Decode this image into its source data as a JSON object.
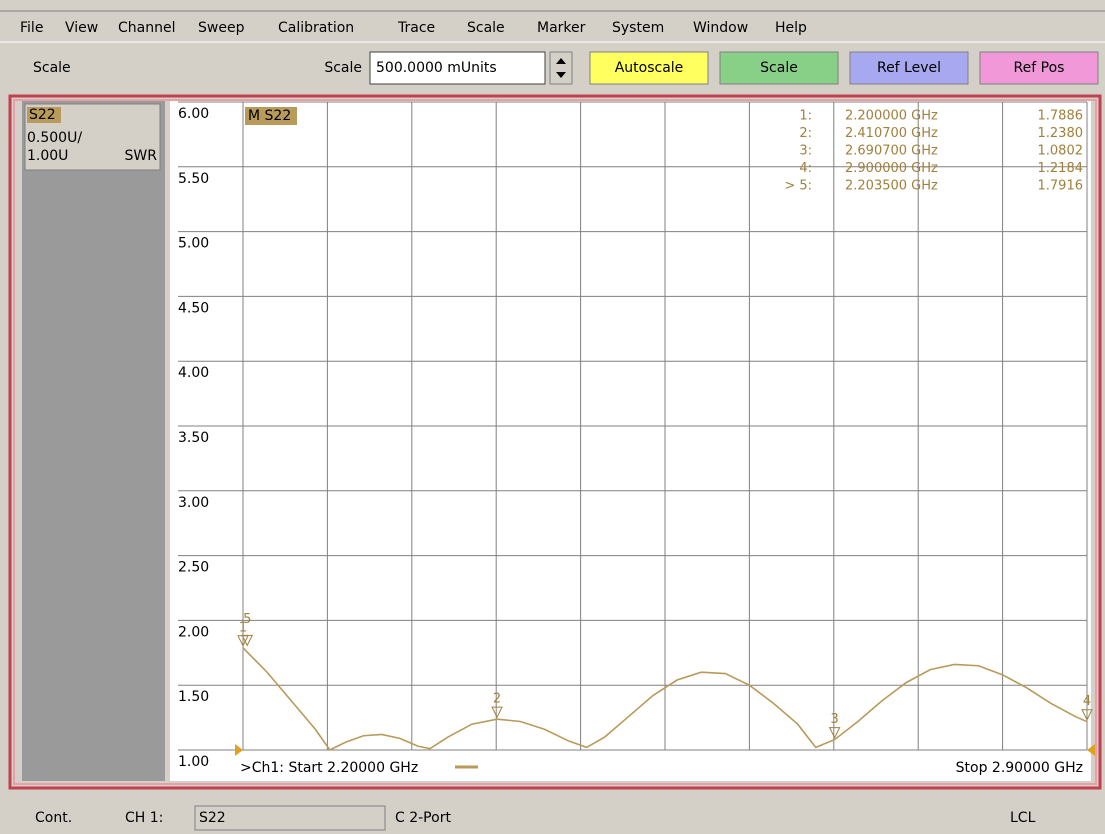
{
  "menu": [
    "File",
    "View",
    "Channel",
    "Sweep",
    "Calibration",
    "Trace",
    "Scale",
    "Marker",
    "System",
    "Window",
    "Help"
  ],
  "toolbar": {
    "section": "Scale",
    "field_label": "Scale",
    "field_value": "500.0000 mUnits",
    "buttons": [
      "Autoscale",
      "Scale",
      "Ref Level",
      "Ref Pos"
    ]
  },
  "trace_panel": {
    "name": "S22",
    "scale": "0.500U/",
    "ref": "1.00U",
    "format": "SWR"
  },
  "status": {
    "mode": "Cont.",
    "channel": "CH 1:",
    "parameter": "S22",
    "cal": "C 2-Port",
    "remote": "LCL"
  },
  "chart_data": {
    "type": "line",
    "trace_label": "M S22",
    "start_label": ">Ch1: Start  2.20000 GHz",
    "stop_label": "Stop  2.90000 GHz",
    "xlim": [
      2.2,
      2.9
    ],
    "ylim": [
      1,
      6
    ],
    "yticks": [
      {
        "value": 1,
        "label": "1.00"
      },
      {
        "value": 1.5,
        "label": "1.50"
      },
      {
        "value": 2,
        "label": "2.00"
      },
      {
        "value": 2.5,
        "label": "2.50"
      },
      {
        "value": 3,
        "label": "3.00"
      },
      {
        "value": 3.5,
        "label": "3.50"
      },
      {
        "value": 4,
        "label": "4.00"
      },
      {
        "value": 4.5,
        "label": "4.50"
      },
      {
        "value": 5,
        "label": "5.00"
      },
      {
        "value": 5.5,
        "label": "5.50"
      },
      {
        "value": 6,
        "label": "6.00"
      }
    ],
    "grid": true,
    "x": [
      2.2,
      2.22,
      2.24,
      2.26,
      2.272,
      2.285,
      2.3,
      2.315,
      2.33,
      2.345,
      2.355,
      2.37,
      2.39,
      2.4107,
      2.43,
      2.45,
      2.47,
      2.485,
      2.5,
      2.52,
      2.54,
      2.56,
      2.58,
      2.6,
      2.62,
      2.64,
      2.66,
      2.675,
      2.6907,
      2.71,
      2.73,
      2.75,
      2.77,
      2.79,
      2.81,
      2.83,
      2.85,
      2.87,
      2.89,
      2.9
    ],
    "series": [
      {
        "name": "S22",
        "color": "#b89a5a",
        "values": [
          1.7886,
          1.6,
          1.38,
          1.16,
          1.0,
          1.06,
          1.11,
          1.12,
          1.09,
          1.03,
          1.01,
          1.1,
          1.2,
          1.238,
          1.22,
          1.16,
          1.07,
          1.02,
          1.1,
          1.26,
          1.42,
          1.54,
          1.6,
          1.59,
          1.5,
          1.36,
          1.2,
          1.02,
          1.0802,
          1.22,
          1.38,
          1.52,
          1.62,
          1.66,
          1.65,
          1.58,
          1.48,
          1.36,
          1.26,
          1.2184
        ]
      }
    ],
    "markers": [
      {
        "id": "1",
        "label": "1:",
        "x": 2.2,
        "x_label": "2.200000 GHz",
        "y": 1.7886,
        "y_label": "1.7886"
      },
      {
        "id": "2",
        "label": "2:",
        "x": 2.4107,
        "x_label": "2.410700 GHz",
        "y": 1.238,
        "y_label": "1.2380"
      },
      {
        "id": "3",
        "label": "3:",
        "x": 2.6907,
        "x_label": "2.690700 GHz",
        "y": 1.0802,
        "y_label": "1.0802"
      },
      {
        "id": "4",
        "label": "4:",
        "x": 2.9,
        "x_label": "2.900000 GHz",
        "y": 1.2184,
        "y_label": "1.2184"
      },
      {
        "id": "5",
        "label": "> 5:",
        "x": 2.2035,
        "x_label": "2.203500 GHz",
        "y": 1.7916,
        "y_label": "1.7916"
      }
    ]
  }
}
